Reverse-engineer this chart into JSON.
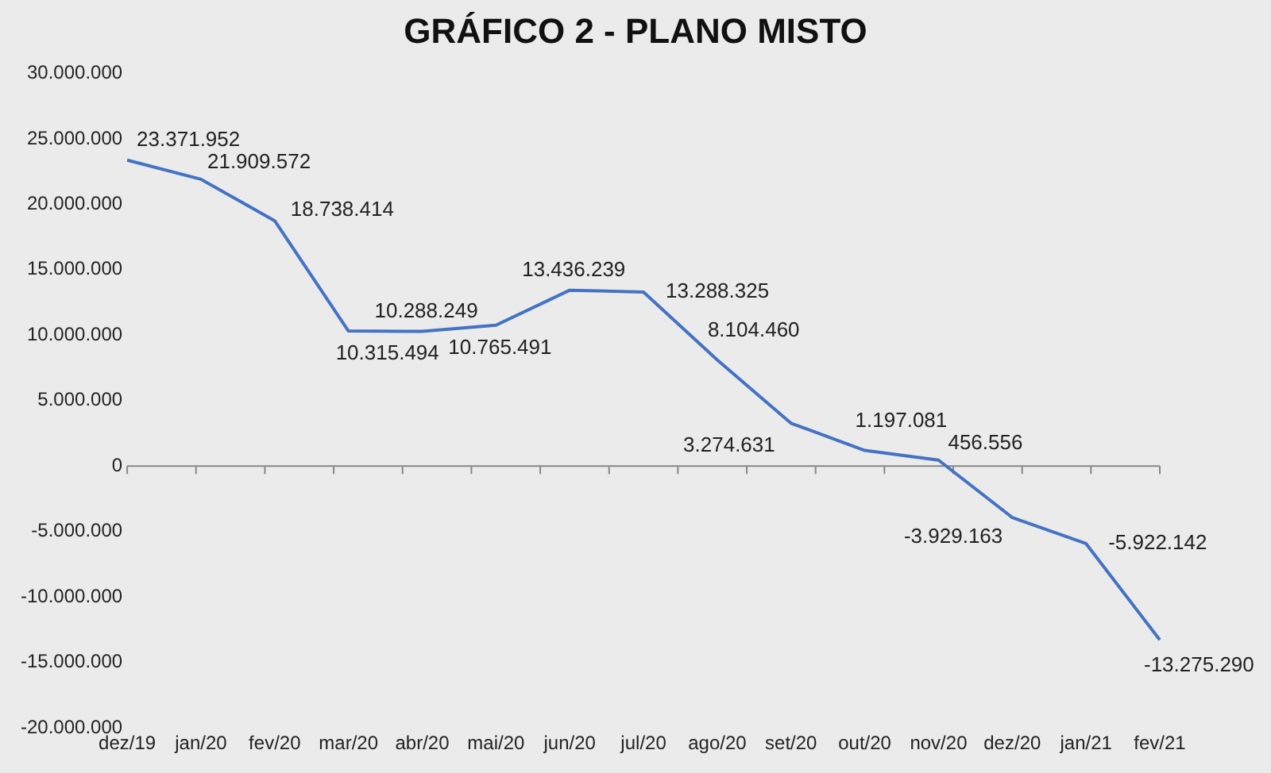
{
  "chart_data": {
    "type": "line",
    "title": "GRÁFICO 2 - PLANO MISTO",
    "categories": [
      "dez/19",
      "jan/20",
      "fev/20",
      "mar/20",
      "abr/20",
      "mai/20",
      "jun/20",
      "jul/20",
      "ago/20",
      "set/20",
      "out/20",
      "nov/20",
      "dez/20",
      "jan/21",
      "fev/21"
    ],
    "series": [
      {
        "color": "#4472c4",
        "values": [
          23371952,
          21909572,
          18738414,
          10315494,
          10288249,
          10765491,
          13436239,
          13288325,
          8104460,
          3274631,
          1197081,
          456556,
          -3929163,
          -5922142,
          -13275290
        ],
        "value_labels": [
          "23.371.952",
          "21.909.572",
          "18.738.414",
          "10.315.494",
          "10.288.249",
          "10.765.491",
          "13.436.239",
          "13.288.325",
          "8.104.460",
          "3.274.631",
          "1.197.081",
          "456.556",
          "-3.929.163",
          "-5.922.142",
          "-13.275.290"
        ]
      }
    ],
    "ylim": [
      -20000000,
      30000000
    ],
    "yticks": [
      {
        "value": -20000000,
        "label": "-20.000.000"
      },
      {
        "value": -15000000,
        "label": "-15.000.000"
      },
      {
        "value": -10000000,
        "label": "-10.000.000"
      },
      {
        "value": -5000000,
        "label": "-5.000.000"
      },
      0,
      {
        "value": 5000000,
        "label": "5.000.000"
      },
      {
        "value": 10000000,
        "label": "10.000.000"
      },
      {
        "value": 15000000,
        "label": "15.000.000"
      },
      {
        "value": 20000000,
        "label": "20.000.000"
      },
      {
        "value": 25000000,
        "label": "25.000.000"
      },
      {
        "value": 30000000,
        "label": "30.000.000"
      }
    ],
    "legend": false,
    "marker": "none",
    "line_style": "solid"
  }
}
